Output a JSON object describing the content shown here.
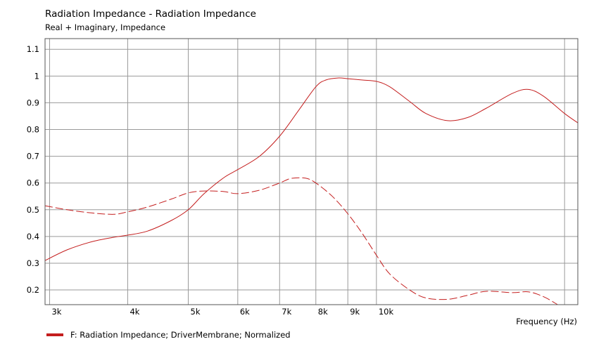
{
  "title": "Radiation Impedance - Radiation Impedance",
  "subtitle": "Real + Imaginary, Impedance",
  "legend": {
    "label": "F: Radiation Impedance;  DriverMembrane; Normalized"
  },
  "colors": {
    "series": "#c41e1e",
    "grid": "#9a9a9a",
    "frame": "#555555"
  },
  "chart_data": {
    "type": "line",
    "xscale": "log",
    "xlim": [
      2950,
      21000
    ],
    "ylim": [
      0.145,
      1.14
    ],
    "xlabel": "Frequency  (Hz)",
    "xticks": [
      {
        "v": 3000,
        "label": "3k"
      },
      {
        "v": 4000,
        "label": "4k"
      },
      {
        "v": 5000,
        "label": "5k"
      },
      {
        "v": 6000,
        "label": "6k"
      },
      {
        "v": 7000,
        "label": "7k"
      },
      {
        "v": 8000,
        "label": "8k"
      },
      {
        "v": 9000,
        "label": "9k"
      },
      {
        "v": 10000,
        "label": "10k"
      }
    ],
    "yticks": [
      {
        "v": 0.2,
        "label": "0.2"
      },
      {
        "v": 0.3,
        "label": "0.3"
      },
      {
        "v": 0.4,
        "label": "0.4"
      },
      {
        "v": 0.5,
        "label": "0.5"
      },
      {
        "v": 0.6,
        "label": "0.6"
      },
      {
        "v": 0.7,
        "label": "0.7"
      },
      {
        "v": 0.8,
        "label": "0.8"
      },
      {
        "v": 0.9,
        "label": "0.9"
      },
      {
        "v": 1,
        "label": "1"
      },
      {
        "v": 1.1,
        "label": "1.1"
      }
    ],
    "grid": true,
    "series": [
      {
        "style": "solid",
        "x": [
          2950,
          3200,
          3500,
          3800,
          4000,
          4300,
          4700,
          5000,
          5300,
          5700,
          6000,
          6500,
          7000,
          7500,
          8000,
          8300,
          8700,
          9000,
          9500,
          10000,
          10500,
          11300,
          12000,
          13000,
          14000,
          15000,
          16500,
          17500,
          18500,
          20000,
          21000
        ],
        "y": [
          0.31,
          0.35,
          0.38,
          0.397,
          0.405,
          0.42,
          0.46,
          0.5,
          0.56,
          0.62,
          0.65,
          0.7,
          0.775,
          0.87,
          0.96,
          0.985,
          0.993,
          0.99,
          0.985,
          0.98,
          0.96,
          0.905,
          0.86,
          0.833,
          0.845,
          0.88,
          0.935,
          0.95,
          0.925,
          0.86,
          0.825
        ]
      },
      {
        "style": "dashed",
        "x": [
          2950,
          3200,
          3500,
          3800,
          4000,
          4300,
          4700,
          5000,
          5300,
          5700,
          6000,
          6500,
          7000,
          7300,
          7700,
          8000,
          8500,
          9000,
          9500,
          10000,
          10500,
          11300,
          12000,
          13000,
          14000,
          15000,
          16500,
          17500,
          18500,
          19500
        ],
        "y": [
          0.515,
          0.5,
          0.488,
          0.483,
          0.492,
          0.51,
          0.54,
          0.563,
          0.57,
          0.568,
          0.56,
          0.573,
          0.6,
          0.617,
          0.618,
          0.6,
          0.55,
          0.485,
          0.41,
          0.33,
          0.26,
          0.2,
          0.17,
          0.165,
          0.18,
          0.195,
          0.19,
          0.193,
          0.175,
          0.145
        ]
      }
    ]
  }
}
